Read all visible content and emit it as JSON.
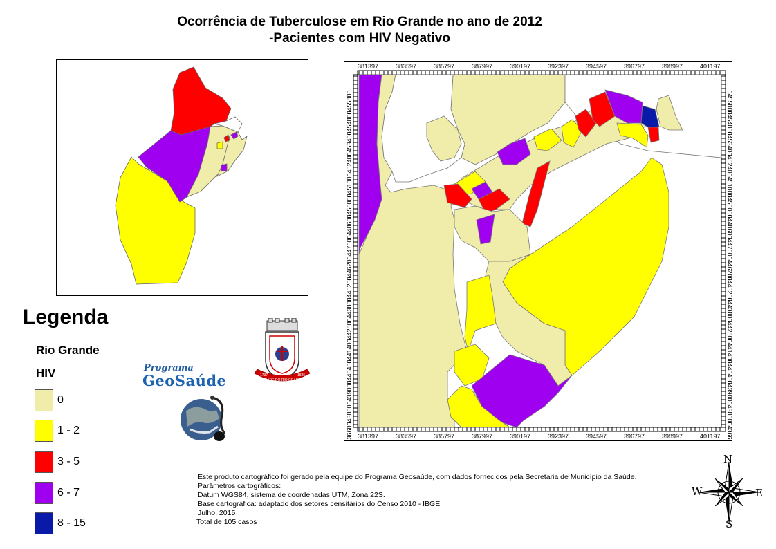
{
  "title": {
    "line1": "Ocorrência de Tuberculose em Rio Grande no ano de 2012",
    "line2": "-Pacientes com HIV Negativo"
  },
  "legend": {
    "heading": "Legenda",
    "layer": "Rio Grande",
    "field": "HIV",
    "items": [
      {
        "label": "0",
        "color": "#f0ecaa"
      },
      {
        "label": "1 - 2",
        "color": "#ffff00"
      },
      {
        "label": "3 - 5",
        "color": "#ff0000"
      },
      {
        "label": "6 - 7",
        "color": "#a000f0"
      },
      {
        "label": "8 - 15",
        "color": "#0a1aa8"
      }
    ]
  },
  "grid": {
    "x_ticks": [
      "381397",
      "383597",
      "385797",
      "387997",
      "390197",
      "392397",
      "394597",
      "396797",
      "398997",
      "401197"
    ],
    "y_ticks": [
      "6455800",
      "6454800",
      "6453400",
      "6452400",
      "6451000",
      "6450000",
      "6448600",
      "6447600",
      "6446200",
      "6445200",
      "6443800",
      "6442800",
      "6441400",
      "6440400",
      "6439000",
      "6438000",
      "6436600"
    ]
  },
  "logos": {
    "program_line1": "Programa",
    "program_line2": "GeoSaúde",
    "crest_text": "CIDADE DO RIO GRANDE",
    "crest_year_left": "1737",
    "crest_year_right": "1835"
  },
  "credits": [
    "Este produto cartográfico foi gerado pela equipe do Programa Geosaúde, com dados fornecidos pela Secretaria de Município da Saúde.",
    "Parâmetros cartográficos:",
    "Datum WGS84, sistema de coordenadas UTM, Zona 22S.",
    "Base cartográfica: adaptado dos setores censitários do Censo 2010 - IBGE",
    "Julho, 2015",
    "Total de 105 casos"
  ],
  "compass": {
    "n": "N",
    "s": "S",
    "e": "E",
    "w": "W"
  },
  "colors": {
    "zero": "#f0ecaa",
    "low": "#ffff00",
    "mid": "#ff0000",
    "high": "#a000f0",
    "top": "#0a1aa8"
  }
}
